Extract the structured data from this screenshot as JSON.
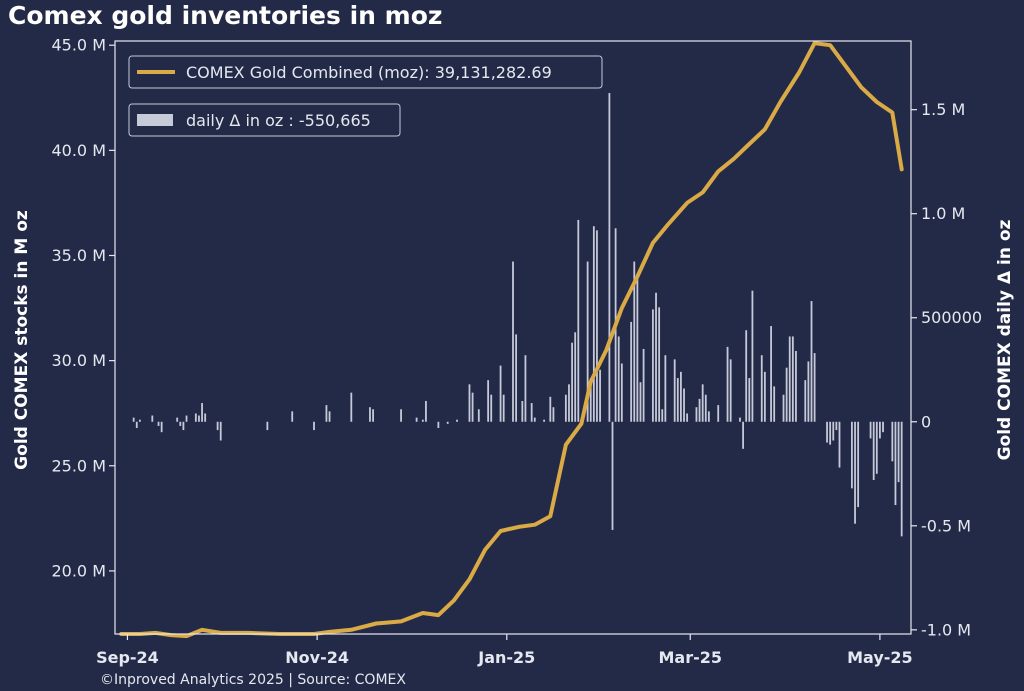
{
  "chart_data": {
    "type": "line",
    "title": "Comex gold inventories in moz",
    "left_axis": {
      "label": "Gold COMEX stocks in M oz",
      "ylim": [
        17.0,
        45.2
      ],
      "ticks": [
        20.0,
        25.0,
        30.0,
        35.0,
        40.0,
        45.0
      ],
      "tick_labels": [
        "20.0 M",
        "25.0 M",
        "30.0 M",
        "35.0 M",
        "40.0 M",
        "45.0 M"
      ]
    },
    "right_axis": {
      "label": "Gold COMEX daily Δ in oz",
      "ylim": [
        -1020000,
        1830000
      ],
      "ticks": [
        -1000000,
        -500000,
        0,
        500000,
        1000000,
        1500000
      ],
      "tick_labels": [
        "-1.0 M",
        "-0.5 M",
        "0",
        "500000",
        "1.0 M",
        "1.5 M"
      ]
    },
    "x_axis": {
      "range": [
        "2024-08-28",
        "2025-05-11"
      ],
      "ticks": [
        "2024-09-01",
        "2024-11-01",
        "2025-01-01",
        "2025-03-01",
        "2025-05-01"
      ],
      "tick_labels": [
        "Sep-24",
        "Nov-24",
        "Jan-25",
        "Mar-25",
        "May-25"
      ]
    },
    "legend": {
      "line_entry": "COMEX Gold Combined (moz): 39,131,282.69",
      "bar_entry": "daily Δ in oz : -550,665",
      "placement": "upper-left"
    },
    "series": [
      {
        "name": "COMEX Gold Combined (moz)",
        "kind": "line",
        "axis": "left",
        "color": "#d9aa45",
        "points": [
          [
            "2024-08-30",
            17.0
          ],
          [
            "2024-09-05",
            17.0
          ],
          [
            "2024-09-10",
            17.05
          ],
          [
            "2024-09-15",
            16.95
          ],
          [
            "2024-09-20",
            16.9
          ],
          [
            "2024-09-25",
            17.2
          ],
          [
            "2024-10-01",
            17.05
          ],
          [
            "2024-10-10",
            17.05
          ],
          [
            "2024-10-20",
            17.0
          ],
          [
            "2024-10-31",
            17.0
          ],
          [
            "2024-11-05",
            17.1
          ],
          [
            "2024-11-12",
            17.2
          ],
          [
            "2024-11-20",
            17.5
          ],
          [
            "2024-11-28",
            17.6
          ],
          [
            "2024-12-05",
            18.0
          ],
          [
            "2024-12-10",
            17.9
          ],
          [
            "2024-12-15",
            18.6
          ],
          [
            "2024-12-20",
            19.6
          ],
          [
            "2024-12-25",
            21.0
          ],
          [
            "2024-12-30",
            21.9
          ],
          [
            "2025-01-05",
            22.1
          ],
          [
            "2025-01-10",
            22.2
          ],
          [
            "2025-01-15",
            22.6
          ],
          [
            "2025-01-20",
            26.0
          ],
          [
            "2025-01-25",
            27.0
          ],
          [
            "2025-01-28",
            29.0
          ],
          [
            "2025-02-02",
            30.5
          ],
          [
            "2025-02-07",
            32.5
          ],
          [
            "2025-02-12",
            34.0
          ],
          [
            "2025-02-17",
            35.6
          ],
          [
            "2025-02-22",
            36.5
          ],
          [
            "2025-02-28",
            37.5
          ],
          [
            "2025-03-05",
            38.0
          ],
          [
            "2025-03-10",
            39.0
          ],
          [
            "2025-03-15",
            39.6
          ],
          [
            "2025-03-20",
            40.3
          ],
          [
            "2025-03-25",
            41.0
          ],
          [
            "2025-03-30",
            42.3
          ],
          [
            "2025-04-05",
            43.7
          ],
          [
            "2025-04-10",
            45.1
          ],
          [
            "2025-04-15",
            45.0
          ],
          [
            "2025-04-20",
            44.0
          ],
          [
            "2025-04-25",
            43.0
          ],
          [
            "2025-04-30",
            42.3
          ],
          [
            "2025-05-05",
            41.8
          ],
          [
            "2025-05-08",
            39.1
          ]
        ]
      },
      {
        "name": "daily Δ in oz",
        "kind": "bar",
        "axis": "right",
        "color": "#c6c9d8",
        "points": [
          [
            "2024-09-03",
            20000
          ],
          [
            "2024-09-04",
            -30000
          ],
          [
            "2024-09-05",
            10000
          ],
          [
            "2024-09-09",
            30000
          ],
          [
            "2024-09-11",
            -20000
          ],
          [
            "2024-09-12",
            -50000
          ],
          [
            "2024-09-17",
            20000
          ],
          [
            "2024-09-18",
            -20000
          ],
          [
            "2024-09-19",
            -40000
          ],
          [
            "2024-09-20",
            30000
          ],
          [
            "2024-09-23",
            40000
          ],
          [
            "2024-09-24",
            30000
          ],
          [
            "2024-09-25",
            90000
          ],
          [
            "2024-09-26",
            40000
          ],
          [
            "2024-09-30",
            -40000
          ],
          [
            "2024-10-01",
            -90000
          ],
          [
            "2024-10-16",
            -40000
          ],
          [
            "2024-10-24",
            50000
          ],
          [
            "2024-10-31",
            -40000
          ],
          [
            "2024-11-04",
            80000
          ],
          [
            "2024-11-05",
            50000
          ],
          [
            "2024-11-12",
            140000
          ],
          [
            "2024-11-18",
            70000
          ],
          [
            "2024-11-19",
            60000
          ],
          [
            "2024-11-28",
            60000
          ],
          [
            "2024-12-03",
            20000
          ],
          [
            "2024-12-05",
            10000
          ],
          [
            "2024-12-06",
            100000
          ],
          [
            "2024-12-10",
            -30000
          ],
          [
            "2024-12-13",
            -10000
          ],
          [
            "2024-12-16",
            10000
          ],
          [
            "2024-12-20",
            180000
          ],
          [
            "2024-12-21",
            140000
          ],
          [
            "2024-12-23",
            60000
          ],
          [
            "2024-12-26",
            200000
          ],
          [
            "2024-12-27",
            130000
          ],
          [
            "2024-12-30",
            270000
          ],
          [
            "2024-12-31",
            130000
          ],
          [
            "2025-01-03",
            770000
          ],
          [
            "2025-01-04",
            420000
          ],
          [
            "2025-01-06",
            100000
          ],
          [
            "2025-01-07",
            320000
          ],
          [
            "2025-01-09",
            90000
          ],
          [
            "2025-01-10",
            20000
          ],
          [
            "2025-01-13",
            10000
          ],
          [
            "2025-01-15",
            120000
          ],
          [
            "2025-01-16",
            70000
          ],
          [
            "2025-01-20",
            130000
          ],
          [
            "2025-01-21",
            180000
          ],
          [
            "2025-01-22",
            380000
          ],
          [
            "2025-01-23",
            430000
          ],
          [
            "2025-01-24",
            970000
          ],
          [
            "2025-01-27",
            770000
          ],
          [
            "2025-01-28",
            210000
          ],
          [
            "2025-01-29",
            940000
          ],
          [
            "2025-01-30",
            920000
          ],
          [
            "2025-01-31",
            250000
          ],
          [
            "2025-02-03",
            1580000
          ],
          [
            "2025-02-04",
            -520000
          ],
          [
            "2025-02-05",
            930000
          ],
          [
            "2025-02-06",
            410000
          ],
          [
            "2025-02-07",
            280000
          ],
          [
            "2025-02-10",
            480000
          ],
          [
            "2025-02-11",
            770000
          ],
          [
            "2025-02-12",
            710000
          ],
          [
            "2025-02-13",
            190000
          ],
          [
            "2025-02-14",
            350000
          ],
          [
            "2025-02-17",
            540000
          ],
          [
            "2025-02-18",
            620000
          ],
          [
            "2025-02-19",
            550000
          ],
          [
            "2025-02-20",
            60000
          ],
          [
            "2025-02-21",
            320000
          ],
          [
            "2025-02-24",
            300000
          ],
          [
            "2025-02-25",
            210000
          ],
          [
            "2025-02-26",
            240000
          ],
          [
            "2025-02-27",
            160000
          ],
          [
            "2025-02-28",
            40000
          ],
          [
            "2025-03-03",
            70000
          ],
          [
            "2025-03-04",
            110000
          ],
          [
            "2025-03-05",
            180000
          ],
          [
            "2025-03-06",
            130000
          ],
          [
            "2025-03-07",
            50000
          ],
          [
            "2025-03-10",
            80000
          ],
          [
            "2025-03-13",
            360000
          ],
          [
            "2025-03-14",
            300000
          ],
          [
            "2025-03-17",
            20000
          ],
          [
            "2025-03-18",
            -130000
          ],
          [
            "2025-03-19",
            440000
          ],
          [
            "2025-03-20",
            210000
          ],
          [
            "2025-03-21",
            630000
          ],
          [
            "2025-03-24",
            320000
          ],
          [
            "2025-03-25",
            240000
          ],
          [
            "2025-03-27",
            460000
          ],
          [
            "2025-03-28",
            170000
          ],
          [
            "2025-03-31",
            130000
          ],
          [
            "2025-04-01",
            260000
          ],
          [
            "2025-04-02",
            410000
          ],
          [
            "2025-04-03",
            410000
          ],
          [
            "2025-04-04",
            340000
          ],
          [
            "2025-04-07",
            200000
          ],
          [
            "2025-04-08",
            290000
          ],
          [
            "2025-04-09",
            580000
          ],
          [
            "2025-04-10",
            330000
          ],
          [
            "2025-04-14",
            -100000
          ],
          [
            "2025-04-15",
            -110000
          ],
          [
            "2025-04-16",
            -90000
          ],
          [
            "2025-04-17",
            -40000
          ],
          [
            "2025-04-18",
            -220000
          ],
          [
            "2025-04-22",
            -320000
          ],
          [
            "2025-04-23",
            -490000
          ],
          [
            "2025-04-24",
            -410000
          ],
          [
            "2025-04-28",
            -80000
          ],
          [
            "2025-04-29",
            -280000
          ],
          [
            "2025-04-30",
            -250000
          ],
          [
            "2025-05-01",
            -80000
          ],
          [
            "2025-05-02",
            -50000
          ],
          [
            "2025-05-05",
            -190000
          ],
          [
            "2025-05-06",
            -400000
          ],
          [
            "2025-05-07",
            -290000
          ],
          [
            "2025-05-08",
            -550665
          ]
        ]
      }
    ],
    "footer": "©Inproved Analytics 2025 | Source: COMEX",
    "colors": {
      "background": "#232a47",
      "text": "#ffffff",
      "axis": "#e6e8ef",
      "line": "#d9aa45",
      "bars": "#c6c9d8"
    }
  }
}
